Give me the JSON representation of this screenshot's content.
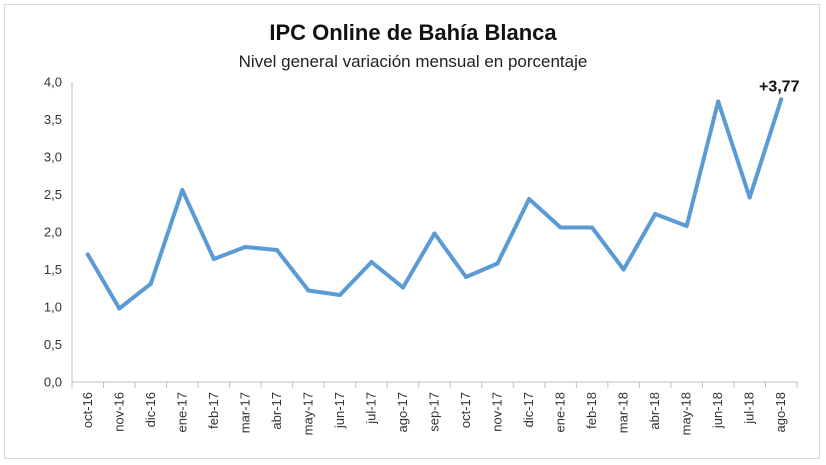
{
  "chart_data": {
    "type": "line",
    "title": "IPC Online de Bahía Blanca",
    "subtitle": "Nivel general variación mensual en porcentaje",
    "xlabel": "",
    "ylabel": "",
    "ylim": [
      0,
      4
    ],
    "yticks": [
      "0,0",
      "0,5",
      "1,0",
      "1,5",
      "2,0",
      "2,5",
      "3,0",
      "3,5",
      "4,0"
    ],
    "grid": false,
    "categories": [
      "oct-16",
      "nov-16",
      "dic-16",
      "ene-17",
      "feb-17",
      "mar-17",
      "abr-17",
      "may-17",
      "jun-17",
      "jul-17",
      "ago-17",
      "sep-17",
      "oct-17",
      "nov-17",
      "dic-17",
      "ene-18",
      "feb-18",
      "mar-18",
      "abr-18",
      "may-18",
      "jun-18",
      "jul-18",
      "ago-18"
    ],
    "series": [
      {
        "values": [
          1.7,
          0.98,
          1.31,
          2.56,
          1.64,
          1.8,
          1.76,
          1.22,
          1.16,
          1.6,
          1.26,
          1.98,
          1.4,
          1.58,
          2.44,
          2.06,
          2.06,
          1.5,
          2.24,
          2.08,
          3.74,
          2.46,
          3.77
        ],
        "color": "#5B9BD5"
      }
    ],
    "annotations": [
      {
        "category": "ago-18",
        "text": "+3,77"
      }
    ]
  }
}
